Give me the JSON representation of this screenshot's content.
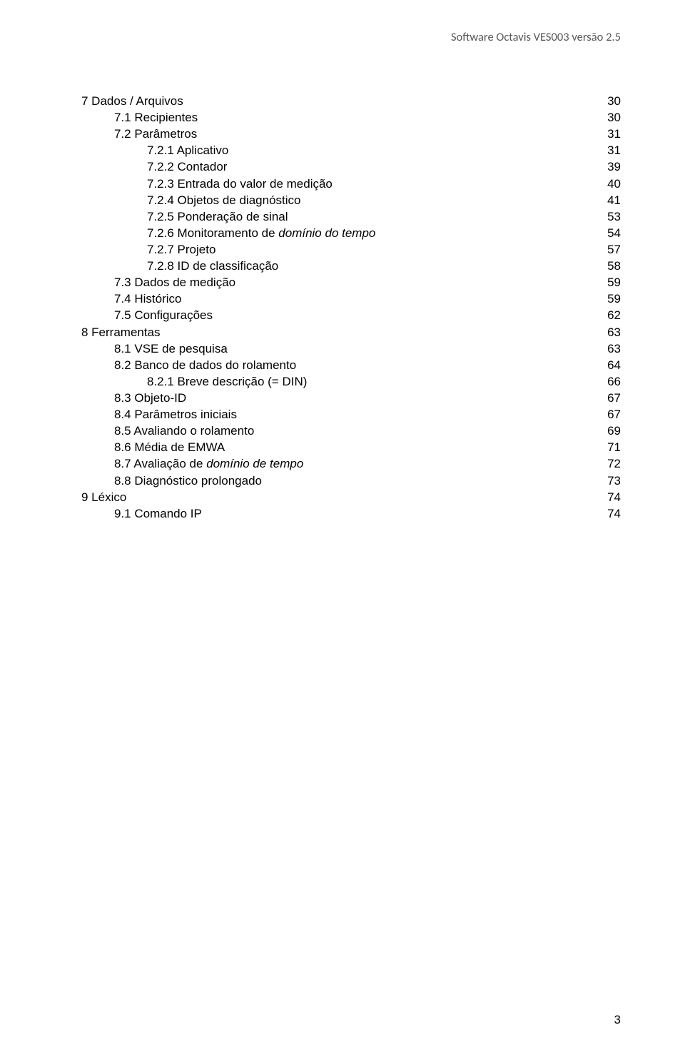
{
  "header": "Software Octavis VES003 versão 2.5",
  "pageNumber": "3",
  "toc": [
    {
      "indent": 0,
      "label": "7 Dados / Arquivos",
      "page": "30"
    },
    {
      "indent": 1,
      "label": "7.1 Recipientes",
      "page": "30"
    },
    {
      "indent": 1,
      "label": "7.2 Parâmetros",
      "page": "31"
    },
    {
      "indent": 2,
      "label": "7.2.1 Aplicativo",
      "page": "31"
    },
    {
      "indent": 2,
      "label": "7.2.2 Contador",
      "page": "39"
    },
    {
      "indent": 2,
      "label": "7.2.3 Entrada do valor de medição",
      "page": "40"
    },
    {
      "indent": 2,
      "label": "7.2.4 Objetos de diagnóstico",
      "page": "41"
    },
    {
      "indent": 2,
      "label": "7.2.5 Ponderação de sinal",
      "page": "53"
    },
    {
      "indent": 2,
      "label": "7.2.6 Monitoramento de ",
      "labelItalic": "domínio do tempo",
      "page": "54"
    },
    {
      "indent": 2,
      "label": "7.2.7 Projeto",
      "page": "57"
    },
    {
      "indent": 2,
      "label": "7.2.8 ID de classificação",
      "page": "58"
    },
    {
      "indent": 1,
      "label": "7.3 Dados de medição",
      "page": "59"
    },
    {
      "indent": 1,
      "label": "7.4 Histórico",
      "page": "59"
    },
    {
      "indent": 1,
      "label": "7.5 Configurações",
      "page": "62"
    },
    {
      "indent": 0,
      "label": "8 Ferramentas",
      "page": "63"
    },
    {
      "indent": 1,
      "label": "8.1 VSE de pesquisa",
      "page": "63"
    },
    {
      "indent": 1,
      "label": "8.2 Banco de dados do rolamento",
      "page": "64"
    },
    {
      "indent": 2,
      "label": "8.2.1 Breve descrição (= DIN)",
      "page": "66"
    },
    {
      "indent": 1,
      "label": "8.3 Objeto-ID",
      "page": "67"
    },
    {
      "indent": 1,
      "label": "8.4 Parâmetros iniciais",
      "page": "67"
    },
    {
      "indent": 1,
      "label": "8.5 Avaliando o rolamento",
      "page": "69"
    },
    {
      "indent": 1,
      "label": "8.6 Média de EMWA",
      "page": "71"
    },
    {
      "indent": 1,
      "label": "8.7 Avaliação de ",
      "labelItalic": "domínio de tempo",
      "page": "72"
    },
    {
      "indent": 1,
      "label": "8.8 Diagnóstico prolongado",
      "page": "73"
    },
    {
      "indent": 0,
      "label": "9 Léxico",
      "page": "74"
    },
    {
      "indent": 1,
      "label": "9.1 Comando IP",
      "page": "74"
    }
  ]
}
